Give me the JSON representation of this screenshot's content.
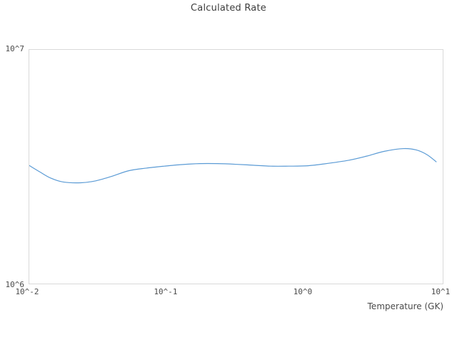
{
  "chart_data": {
    "type": "line",
    "title": "Calculated Rate",
    "xlabel": "Temperature (GK)",
    "ylabel": "",
    "x_scale": "log",
    "y_scale": "log",
    "xlim": [
      0.01,
      10.5
    ],
    "ylim": [
      1000000,
      10000000
    ],
    "x_tick_values": [
      0.01,
      0.1,
      1,
      10
    ],
    "x_tick_labels": [
      "10^-2",
      "10^-1",
      "10^0",
      "10^1"
    ],
    "y_tick_values": [
      1000000,
      10000000
    ],
    "y_tick_labels": [
      "10^6",
      "10^7"
    ],
    "grid": false,
    "legend_position": "none",
    "line_color": "#5b9bd5",
    "border_color": "#d9d9d9",
    "text_color": "#4a4a4a",
    "series": [
      {
        "name": "calculated-rate",
        "x": [
          0.01,
          0.012,
          0.0143,
          0.0177,
          0.0239,
          0.0304,
          0.0395,
          0.0533,
          0.0718,
          0.0968,
          0.13,
          0.176,
          0.237,
          0.32,
          0.431,
          0.581,
          0.784,
          1.06,
          1.42,
          2.16,
          2.92,
          3.93,
          5.43,
          6.73,
          8.06,
          9.41
        ],
        "y": [
          3200000,
          3000000,
          2830000,
          2720000,
          2700000,
          2750000,
          2870000,
          3040000,
          3120000,
          3180000,
          3230000,
          3260000,
          3260000,
          3240000,
          3210000,
          3180000,
          3180000,
          3190000,
          3250000,
          3370000,
          3510000,
          3680000,
          3780000,
          3730000,
          3560000,
          3320000
        ]
      }
    ]
  }
}
